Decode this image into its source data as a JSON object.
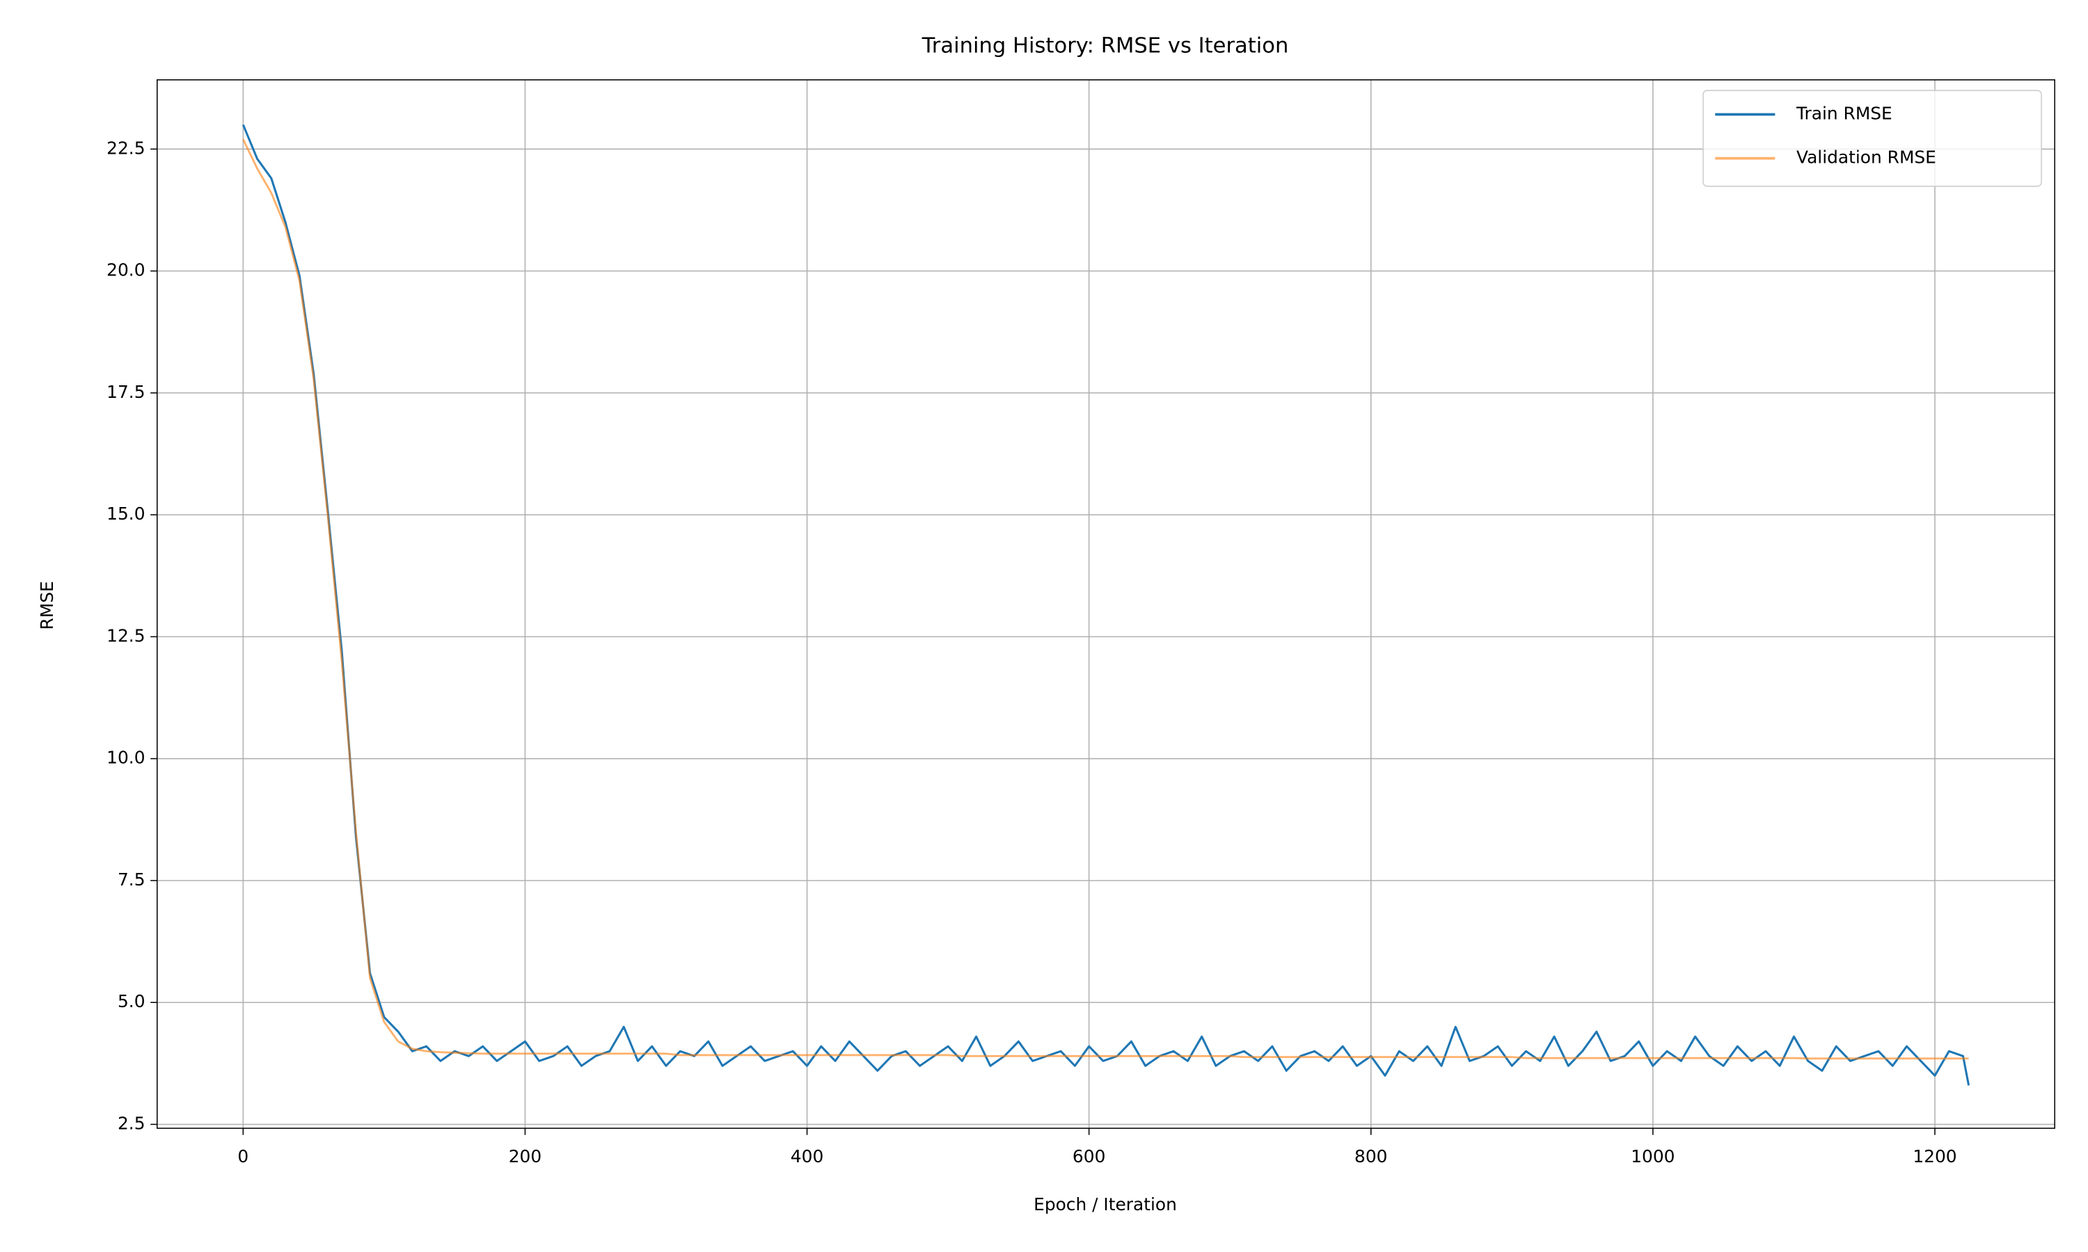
{
  "chart_data": {
    "type": "line",
    "title": "Training History: RMSE vs Iteration",
    "x_label": "Epoch / Iteration",
    "y_label": "RMSE",
    "x": [
      0,
      10,
      20,
      30,
      40,
      50,
      60,
      70,
      80,
      90,
      100,
      110,
      120,
      130,
      140,
      150,
      160,
      170,
      180,
      190,
      200,
      210,
      220,
      230,
      240,
      250,
      260,
      270,
      280,
      290,
      300,
      310,
      320,
      330,
      340,
      350,
      360,
      370,
      380,
      390,
      400,
      410,
      420,
      430,
      440,
      450,
      460,
      470,
      480,
      490,
      500,
      510,
      520,
      530,
      540,
      550,
      560,
      570,
      580,
      590,
      600,
      610,
      620,
      630,
      640,
      650,
      660,
      670,
      680,
      690,
      700,
      710,
      720,
      730,
      740,
      750,
      760,
      770,
      780,
      790,
      800,
      810,
      820,
      830,
      840,
      850,
      860,
      870,
      880,
      890,
      900,
      910,
      920,
      930,
      940,
      950,
      960,
      970,
      980,
      990,
      1000,
      1010,
      1020,
      1030,
      1040,
      1050,
      1060,
      1070,
      1080,
      1090,
      1100,
      1110,
      1120,
      1130,
      1140,
      1150,
      1160,
      1170,
      1180,
      1190,
      1200,
      1210,
      1220,
      1224
    ],
    "series": [
      {
        "name": "Train RMSE",
        "color": "#1f77b4",
        "values": [
          23.0,
          22.3,
          21.9,
          21.0,
          19.9,
          17.9,
          15.1,
          12.2,
          8.4,
          5.6,
          4.7,
          4.4,
          4.0,
          4.1,
          3.8,
          4.0,
          3.9,
          4.1,
          3.8,
          4.0,
          4.2,
          3.8,
          3.9,
          4.1,
          3.7,
          3.9,
          4.0,
          4.5,
          3.8,
          4.1,
          3.7,
          4.0,
          3.9,
          4.2,
          3.7,
          3.9,
          4.1,
          3.8,
          3.9,
          4.0,
          3.7,
          4.1,
          3.8,
          4.2,
          3.9,
          3.6,
          3.9,
          4.0,
          3.7,
          3.9,
          4.1,
          3.8,
          4.3,
          3.7,
          3.9,
          4.2,
          3.8,
          3.9,
          4.0,
          3.7,
          4.1,
          3.8,
          3.9,
          4.2,
          3.7,
          3.9,
          4.0,
          3.8,
          4.3,
          3.7,
          3.9,
          4.0,
          3.8,
          4.1,
          3.6,
          3.9,
          4.0,
          3.8,
          4.1,
          3.7,
          3.9,
          3.5,
          4.0,
          3.8,
          4.1,
          3.7,
          4.5,
          3.8,
          3.9,
          4.1,
          3.7,
          4.0,
          3.8,
          4.3,
          3.7,
          4.0,
          4.4,
          3.8,
          3.9,
          4.2,
          3.7,
          4.0,
          3.8,
          4.3,
          3.9,
          3.7,
          4.1,
          3.8,
          4.0,
          3.7,
          4.3,
          3.8,
          3.6,
          4.1,
          3.8,
          3.9,
          4.0,
          3.7,
          4.1,
          3.8,
          3.5,
          4.0,
          3.9,
          3.3
        ]
      },
      {
        "name": "Validation RMSE",
        "color": "#ff7f0e",
        "values": [
          22.7,
          22.1,
          21.6,
          20.9,
          19.8,
          17.8,
          15.0,
          12.0,
          8.5,
          5.5,
          4.6,
          4.2,
          4.05,
          4.0,
          3.98,
          3.97,
          3.96,
          3.95,
          3.95,
          3.95,
          3.95,
          3.95,
          3.95,
          3.95,
          3.95,
          3.95,
          3.95,
          3.95,
          3.95,
          3.95,
          3.95,
          3.92,
          3.92,
          3.92,
          3.92,
          3.92,
          3.92,
          3.92,
          3.92,
          3.92,
          3.92,
          3.92,
          3.92,
          3.92,
          3.92,
          3.92,
          3.92,
          3.92,
          3.92,
          3.92,
          3.92,
          3.9,
          3.9,
          3.9,
          3.9,
          3.9,
          3.9,
          3.9,
          3.9,
          3.9,
          3.9,
          3.9,
          3.9,
          3.9,
          3.9,
          3.9,
          3.9,
          3.9,
          3.9,
          3.9,
          3.9,
          3.88,
          3.88,
          3.88,
          3.88,
          3.88,
          3.88,
          3.88,
          3.88,
          3.88,
          3.88,
          3.88,
          3.88,
          3.88,
          3.88,
          3.88,
          3.88,
          3.88,
          3.88,
          3.88,
          3.88,
          3.86,
          3.86,
          3.86,
          3.86,
          3.86,
          3.86,
          3.86,
          3.86,
          3.86,
          3.86,
          3.86,
          3.86,
          3.86,
          3.86,
          3.86,
          3.86,
          3.86,
          3.86,
          3.86,
          3.86,
          3.85,
          3.85,
          3.85,
          3.85,
          3.85,
          3.85,
          3.85,
          3.85,
          3.85,
          3.85,
          3.85,
          3.85,
          3.85
        ]
      }
    ],
    "xlim": [
      -61,
      1285
    ],
    "ylim": [
      2.42,
      23.92
    ],
    "xticks": [
      0,
      200,
      400,
      600,
      800,
      1000,
      1200
    ],
    "yticks": [
      2.5,
      {
        "value": 5,
        "label": "5.0"
      },
      7.5,
      {
        "value": 10,
        "label": "10.0"
      },
      12.5,
      {
        "value": 15,
        "label": "15.0"
      },
      17.5,
      {
        "value": 20,
        "label": "20.0"
      },
      22.5
    ],
    "grid": true,
    "legend": "upper right"
  }
}
